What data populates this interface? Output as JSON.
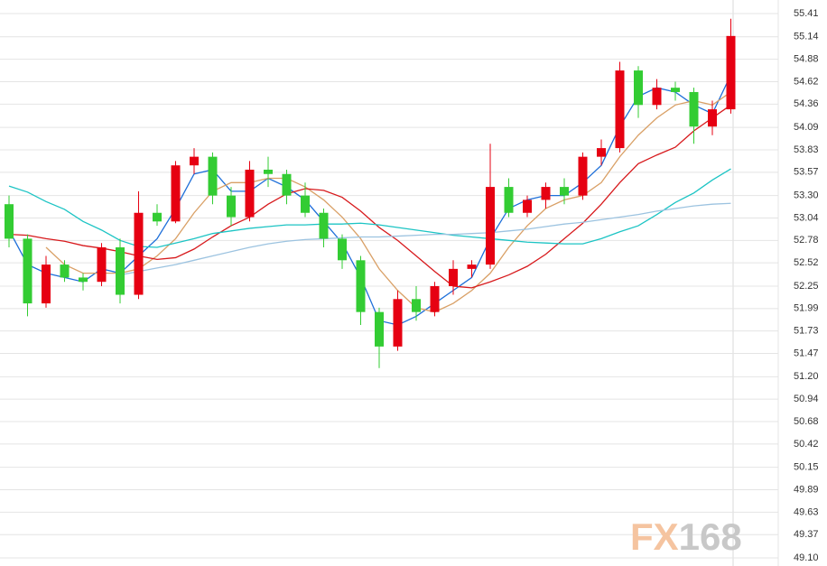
{
  "chart_data": {
    "type": "candlestick",
    "watermark": "FX168",
    "up_color": "#e60012",
    "down_color": "#33cc33",
    "ylim": [
      49.1,
      55.41
    ],
    "yticks": [
      55.41,
      55.14,
      54.88,
      54.62,
      54.36,
      54.09,
      53.83,
      53.57,
      {
        "value": 53.3,
        "label": "53.30"
      },
      53.04,
      52.78,
      52.52,
      52.25,
      51.99,
      51.73,
      51.47,
      {
        "value": 51.2,
        "label": "51.20"
      },
      50.94,
      50.68,
      50.42,
      50.15,
      49.89,
      49.63,
      49.37,
      {
        "value": 49.1,
        "label": "49.10"
      }
    ],
    "grid": true,
    "open": [
      53.2,
      52.8,
      52.05,
      52.5,
      52.35,
      52.3,
      52.7,
      52.15,
      53.1,
      53.0,
      53.65,
      53.75,
      53.3,
      53.05,
      53.6,
      53.55,
      53.3,
      53.1,
      52.8,
      52.55,
      51.95,
      51.55,
      52.1,
      51.95,
      52.25,
      52.45,
      52.5,
      53.4,
      53.1,
      53.25,
      53.4,
      53.3,
      53.75,
      53.85,
      54.75,
      54.35,
      54.55,
      54.5,
      54.1,
      54.3
    ],
    "high": [
      53.3,
      52.85,
      52.6,
      52.55,
      52.4,
      52.75,
      52.8,
      53.35,
      53.2,
      53.7,
      53.85,
      53.8,
      53.4,
      53.7,
      53.75,
      53.6,
      53.45,
      53.15,
      52.85,
      52.6,
      52.0,
      52.2,
      52.25,
      52.3,
      52.55,
      52.55,
      53.9,
      53.5,
      53.3,
      53.45,
      53.5,
      53.8,
      53.95,
      54.85,
      54.8,
      54.65,
      54.62,
      54.55,
      54.4,
      55.35
    ],
    "low": [
      52.7,
      51.9,
      52.0,
      52.3,
      52.2,
      52.25,
      52.05,
      52.1,
      52.95,
      52.98,
      53.55,
      53.2,
      52.95,
      53.0,
      53.4,
      53.2,
      53.05,
      52.7,
      52.45,
      51.8,
      51.3,
      51.5,
      51.85,
      51.9,
      52.15,
      52.35,
      52.45,
      53.05,
      53.05,
      53.15,
      53.2,
      53.25,
      53.65,
      53.8,
      54.2,
      54.3,
      54.4,
      53.9,
      54.0,
      54.25
    ],
    "close": [
      52.8,
      52.05,
      52.5,
      52.35,
      52.3,
      52.7,
      52.15,
      53.1,
      53.0,
      53.65,
      53.75,
      53.3,
      53.05,
      53.6,
      53.55,
      53.3,
      53.1,
      52.8,
      52.55,
      51.95,
      51.55,
      52.1,
      51.95,
      52.25,
      52.45,
      52.5,
      53.4,
      53.1,
      53.25,
      53.4,
      53.3,
      53.75,
      53.85,
      54.75,
      54.35,
      54.55,
      54.5,
      54.1,
      54.3,
      55.15
    ],
    "series": [
      {
        "color": "#1e6fd9",
        "values": [
          52.9,
          52.5,
          52.4,
          52.35,
          52.3,
          52.45,
          52.4,
          52.6,
          52.8,
          53.15,
          53.55,
          53.6,
          53.35,
          53.35,
          53.5,
          53.4,
          53.25,
          53.0,
          52.75,
          52.35,
          51.85,
          51.8,
          51.9,
          52.05,
          52.2,
          52.35,
          52.8,
          53.15,
          53.25,
          53.3,
          53.3,
          53.45,
          53.65,
          54.1,
          54.45,
          54.55,
          54.5,
          54.35,
          54.25,
          54.7
        ]
      },
      {
        "color": "#d9a066",
        "values": [
          null,
          null,
          52.7,
          52.5,
          52.4,
          52.4,
          52.4,
          52.45,
          52.6,
          52.8,
          53.1,
          53.35,
          53.45,
          53.45,
          53.5,
          53.5,
          53.4,
          53.25,
          53.05,
          52.8,
          52.45,
          52.2,
          52.0,
          51.95,
          52.05,
          52.2,
          52.4,
          52.7,
          52.95,
          53.15,
          53.25,
          53.3,
          53.45,
          53.75,
          54.0,
          54.2,
          54.35,
          54.4,
          54.35,
          54.5
        ]
      },
      {
        "color": "#d7191c",
        "values": [
          52.85,
          52.84,
          52.8,
          52.77,
          52.72,
          52.69,
          52.65,
          52.6,
          52.56,
          52.58,
          52.68,
          52.82,
          52.95,
          53.05,
          53.2,
          53.32,
          53.38,
          53.36,
          53.28,
          53.12,
          52.93,
          52.78,
          52.6,
          52.42,
          52.25,
          52.23,
          52.3,
          52.38,
          52.48,
          52.62,
          52.8,
          52.98,
          53.2,
          53.45,
          53.67,
          53.77,
          53.86,
          54.05,
          54.2,
          54.35
        ]
      },
      {
        "color": "#1cc4c4",
        "values": [
          53.41,
          53.34,
          53.23,
          53.14,
          53.0,
          52.9,
          52.78,
          52.71,
          52.7,
          52.75,
          52.8,
          52.86,
          52.89,
          52.92,
          52.94,
          52.96,
          52.96,
          52.97,
          52.97,
          52.98,
          52.96,
          52.93,
          52.9,
          52.87,
          52.84,
          52.82,
          52.8,
          52.78,
          52.76,
          52.75,
          52.74,
          52.74,
          52.8,
          52.88,
          52.95,
          53.08,
          53.22,
          53.33,
          53.48,
          53.61
        ]
      },
      {
        "color": "#9cc3e0",
        "values": [
          null,
          null,
          null,
          null,
          null,
          null,
          52.38,
          52.42,
          52.46,
          52.5,
          52.55,
          52.6,
          52.65,
          52.7,
          52.74,
          52.77,
          52.79,
          52.8,
          52.81,
          52.82,
          52.82,
          52.83,
          52.84,
          52.85,
          52.85,
          52.86,
          52.87,
          52.89,
          52.91,
          52.94,
          52.97,
          52.99,
          53.02,
          53.05,
          53.08,
          53.12,
          53.15,
          53.18,
          53.2,
          53.21
        ]
      }
    ]
  }
}
